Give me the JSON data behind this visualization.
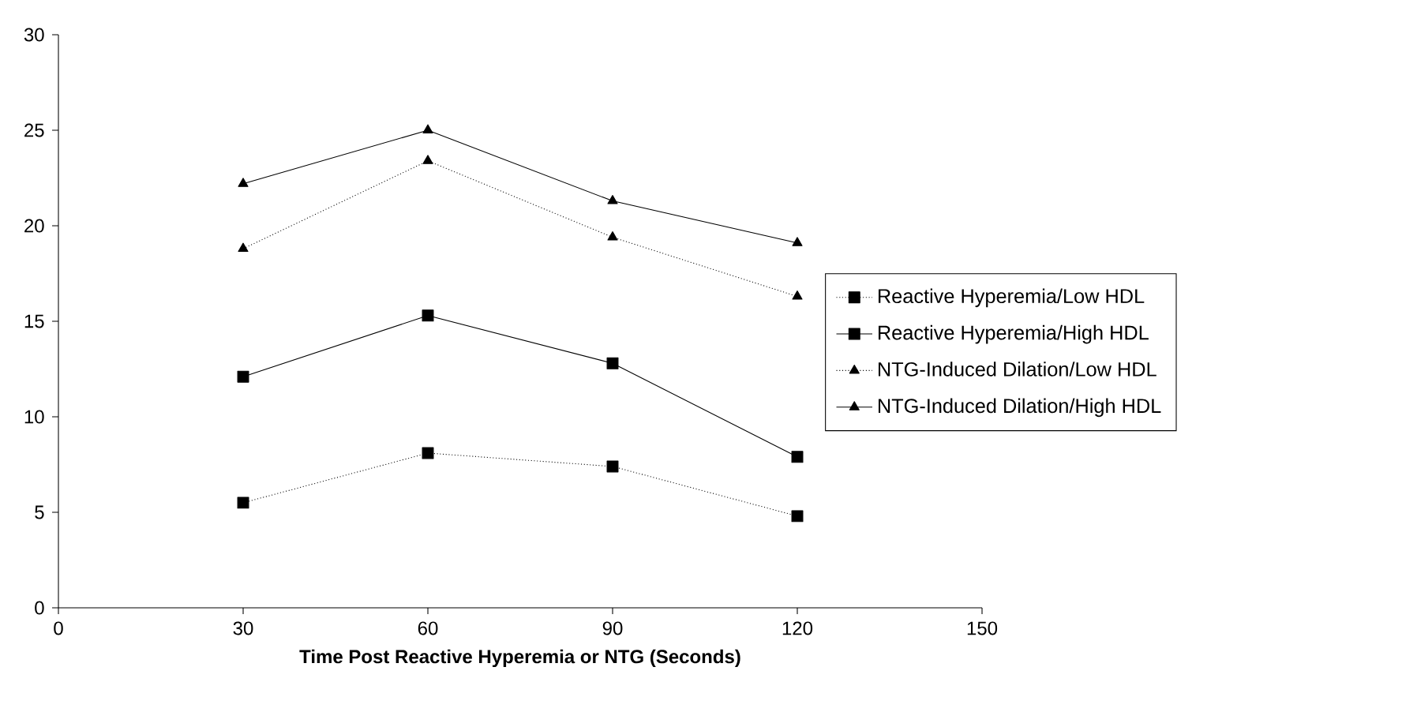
{
  "chart_data": {
    "type": "line",
    "xlabel": "Time Post Reactive Hyperemia or NTG (Seconds)",
    "x": [
      30,
      60,
      90,
      120
    ],
    "series": [
      {
        "name": "Reactive Hyperemia/Low HDL",
        "color": "#000000",
        "marker": "square",
        "line_style": "dotted",
        "values": [
          5.5,
          8.1,
          7.4,
          4.8
        ]
      },
      {
        "name": "Reactive Hyperemia/High HDL",
        "color": "#000000",
        "marker": "square",
        "line_style": "solid",
        "values": [
          12.1,
          15.3,
          12.8,
          7.9
        ]
      },
      {
        "name": "NTG-Induced Dilation/Low HDL",
        "color": "#000000",
        "marker": "triangle",
        "line_style": "dotted",
        "values": [
          18.8,
          23.4,
          19.4,
          16.3
        ]
      },
      {
        "name": "NTG-Induced Dilation/High HDL",
        "color": "#000000",
        "marker": "triangle",
        "line_style": "solid",
        "values": [
          22.2,
          25.0,
          21.3,
          19.1
        ]
      }
    ],
    "xlim": [
      0,
      150
    ],
    "xticks": [
      0,
      30,
      60,
      90,
      120,
      150
    ],
    "ylim": [
      0,
      30
    ],
    "yticks": [
      0,
      5,
      10,
      15,
      20,
      25,
      30
    ],
    "grid": false,
    "legend": "right"
  }
}
